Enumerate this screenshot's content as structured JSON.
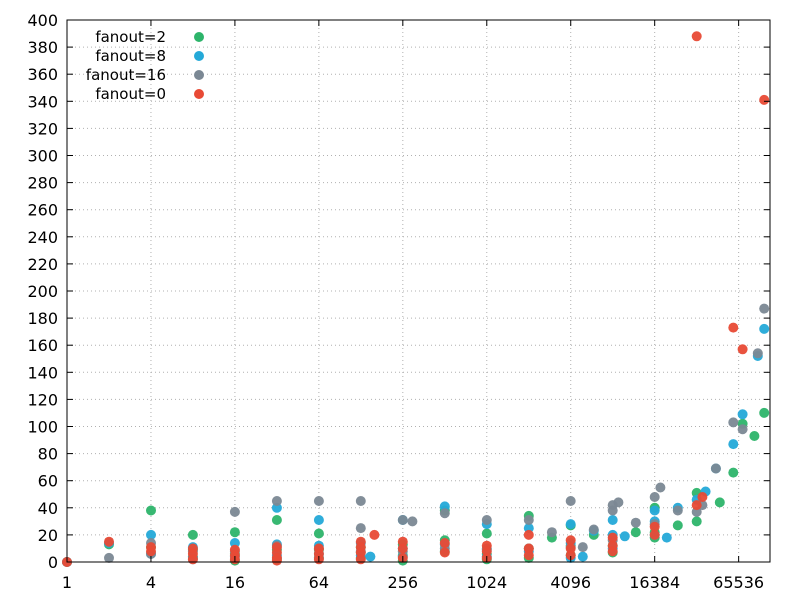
{
  "chart_data": {
    "type": "scatter",
    "x_scale": "log2",
    "xlim": [
      1,
      110000
    ],
    "ylim": [
      0,
      400
    ],
    "x_ticks": [
      {
        "value": 1,
        "label": "1"
      },
      {
        "value": 4,
        "label": "4"
      },
      {
        "value": 16,
        "label": "16"
      },
      {
        "value": 64,
        "label": "64"
      },
      {
        "value": 256,
        "label": "256"
      },
      {
        "value": 1024,
        "label": "1024"
      },
      {
        "value": 4096,
        "label": "4096"
      },
      {
        "value": 16384,
        "label": "16384"
      },
      {
        "value": 65536,
        "label": "65536"
      }
    ],
    "y_ticks": [
      0,
      20,
      40,
      60,
      80,
      100,
      120,
      140,
      160,
      180,
      200,
      220,
      240,
      260,
      280,
      300,
      320,
      340,
      360,
      380,
      400
    ],
    "grid": "dotted",
    "legend_position": "top-left",
    "series": [
      {
        "name": "fanout=2",
        "color": "#2db46a",
        "points": [
          [
            1,
            0
          ],
          [
            2,
            13
          ],
          [
            4,
            38
          ],
          [
            4,
            11
          ],
          [
            8,
            20
          ],
          [
            8,
            9
          ],
          [
            8,
            4
          ],
          [
            16,
            22
          ],
          [
            16,
            6
          ],
          [
            16,
            1
          ],
          [
            32,
            31
          ],
          [
            32,
            9
          ],
          [
            32,
            2
          ],
          [
            64,
            21
          ],
          [
            64,
            9
          ],
          [
            64,
            3
          ],
          [
            128,
            11
          ],
          [
            128,
            7
          ],
          [
            128,
            3
          ],
          [
            256,
            13
          ],
          [
            256,
            5
          ],
          [
            256,
            1
          ],
          [
            512,
            38
          ],
          [
            512,
            16
          ],
          [
            512,
            8
          ],
          [
            1024,
            21
          ],
          [
            1024,
            6
          ],
          [
            1024,
            2
          ],
          [
            2048,
            34
          ],
          [
            2048,
            10
          ],
          [
            2048,
            3
          ],
          [
            3000,
            18
          ],
          [
            4096,
            27
          ],
          [
            4096,
            12
          ],
          [
            4096,
            5
          ],
          [
            6000,
            20
          ],
          [
            8192,
            12
          ],
          [
            8192,
            7
          ],
          [
            12000,
            22
          ],
          [
            16384,
            40
          ],
          [
            16384,
            22
          ],
          [
            16384,
            18
          ],
          [
            24000,
            27
          ],
          [
            32768,
            51
          ],
          [
            32768,
            30
          ],
          [
            48000,
            44
          ],
          [
            60000,
            66
          ],
          [
            70000,
            102
          ],
          [
            85000,
            93
          ],
          [
            100000,
            110
          ]
        ]
      },
      {
        "name": "fanout=8",
        "color": "#24a9d8",
        "points": [
          [
            1,
            0
          ],
          [
            2,
            14
          ],
          [
            4,
            20
          ],
          [
            4,
            6
          ],
          [
            8,
            11
          ],
          [
            8,
            3
          ],
          [
            16,
            14
          ],
          [
            16,
            4
          ],
          [
            32,
            40
          ],
          [
            32,
            13
          ],
          [
            32,
            5
          ],
          [
            64,
            31
          ],
          [
            64,
            12
          ],
          [
            64,
            6
          ],
          [
            128,
            14
          ],
          [
            128,
            5
          ],
          [
            150,
            4
          ],
          [
            256,
            31
          ],
          [
            256,
            10
          ],
          [
            256,
            4
          ],
          [
            512,
            41
          ],
          [
            512,
            13
          ],
          [
            1024,
            28
          ],
          [
            1024,
            9
          ],
          [
            1024,
            4
          ],
          [
            2048,
            25
          ],
          [
            2048,
            8
          ],
          [
            4096,
            28
          ],
          [
            4096,
            14
          ],
          [
            4096,
            3
          ],
          [
            5000,
            4
          ],
          [
            6000,
            23
          ],
          [
            8192,
            31
          ],
          [
            8192,
            20
          ],
          [
            8192,
            10
          ],
          [
            10000,
            19
          ],
          [
            16384,
            38
          ],
          [
            16384,
            30
          ],
          [
            16384,
            20
          ],
          [
            20000,
            18
          ],
          [
            24000,
            40
          ],
          [
            32768,
            46
          ],
          [
            38000,
            52
          ],
          [
            45000,
            69
          ],
          [
            60000,
            87
          ],
          [
            70000,
            109
          ],
          [
            90000,
            152
          ],
          [
            100000,
            172
          ]
        ]
      },
      {
        "name": "fanout=16",
        "color": "#7b8894",
        "points": [
          [
            1,
            0
          ],
          [
            2,
            3
          ],
          [
            4,
            14
          ],
          [
            4,
            6
          ],
          [
            8,
            8
          ],
          [
            8,
            2
          ],
          [
            16,
            37
          ],
          [
            16,
            8
          ],
          [
            32,
            45
          ],
          [
            32,
            12
          ],
          [
            32,
            3
          ],
          [
            64,
            45
          ],
          [
            64,
            10
          ],
          [
            64,
            3
          ],
          [
            128,
            45
          ],
          [
            128,
            25
          ],
          [
            128,
            8
          ],
          [
            256,
            31
          ],
          [
            256,
            8
          ],
          [
            300,
            30
          ],
          [
            512,
            36
          ],
          [
            512,
            10
          ],
          [
            1024,
            31
          ],
          [
            1024,
            10
          ],
          [
            2048,
            31
          ],
          [
            2048,
            10
          ],
          [
            3000,
            22
          ],
          [
            4096,
            45
          ],
          [
            4096,
            11
          ],
          [
            5000,
            11
          ],
          [
            6000,
            24
          ],
          [
            8192,
            42
          ],
          [
            8192,
            38
          ],
          [
            8192,
            16
          ],
          [
            9000,
            44
          ],
          [
            12000,
            29
          ],
          [
            16384,
            48
          ],
          [
            16384,
            28
          ],
          [
            18000,
            55
          ],
          [
            24000,
            38
          ],
          [
            32768,
            37
          ],
          [
            36000,
            42
          ],
          [
            45000,
            69
          ],
          [
            60000,
            103
          ],
          [
            70000,
            98
          ],
          [
            90000,
            154
          ],
          [
            100000,
            187
          ]
        ]
      },
      {
        "name": "fanout=0",
        "color": "#e84a35",
        "points": [
          [
            1,
            0
          ],
          [
            2,
            15
          ],
          [
            4,
            11
          ],
          [
            4,
            8
          ],
          [
            8,
            10
          ],
          [
            8,
            6
          ],
          [
            8,
            2
          ],
          [
            16,
            9
          ],
          [
            16,
            5
          ],
          [
            16,
            2
          ],
          [
            32,
            11
          ],
          [
            32,
            7
          ],
          [
            32,
            3
          ],
          [
            32,
            1
          ],
          [
            64,
            10
          ],
          [
            64,
            6
          ],
          [
            64,
            2
          ],
          [
            128,
            15
          ],
          [
            128,
            11
          ],
          [
            128,
            7
          ],
          [
            128,
            2
          ],
          [
            160,
            20
          ],
          [
            256,
            15
          ],
          [
            256,
            10
          ],
          [
            256,
            3
          ],
          [
            512,
            14
          ],
          [
            512,
            7
          ],
          [
            1024,
            12
          ],
          [
            1024,
            8
          ],
          [
            1024,
            3
          ],
          [
            2048,
            20
          ],
          [
            2048,
            10
          ],
          [
            2048,
            5
          ],
          [
            4096,
            16
          ],
          [
            4096,
            10
          ],
          [
            4096,
            5
          ],
          [
            8192,
            18
          ],
          [
            8192,
            12
          ],
          [
            8192,
            8
          ],
          [
            16384,
            26
          ],
          [
            16384,
            20
          ],
          [
            32768,
            388
          ],
          [
            32768,
            42
          ],
          [
            36000,
            48
          ],
          [
            60000,
            173
          ],
          [
            70000,
            157
          ],
          [
            100000,
            341
          ]
        ]
      }
    ]
  }
}
